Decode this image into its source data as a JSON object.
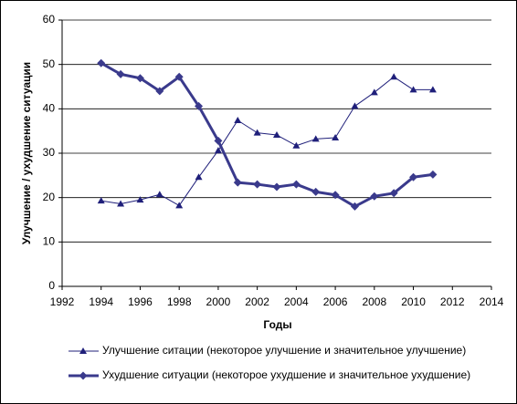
{
  "chart_data": {
    "type": "line",
    "x_label": "Годы",
    "y_label": "Улучшение / ухудшение ситуации",
    "x": [
      1994,
      1995,
      1996,
      1997,
      1998,
      1999,
      2000,
      2001,
      2002,
      2003,
      2004,
      2005,
      2006,
      2007,
      2008,
      2009,
      2010,
      2011
    ],
    "series": [
      {
        "name": "Улучшение ситации (некоторое улучшение и значительное улучшение)",
        "color": "#1f1f7a",
        "marker": "triangle",
        "line_width": 1,
        "values": [
          19.3,
          18.6,
          19.5,
          20.7,
          18.2,
          24.6,
          30.6,
          37.4,
          34.6,
          34.1,
          31.7,
          33.2,
          33.5,
          40.6,
          43.7,
          47.2,
          44.3,
          44.3
        ]
      },
      {
        "name": "Ухудшение ситуации (некоторое ухудшение и значительное ухудшение)",
        "color": "#3a3a8c",
        "marker": "diamond",
        "line_width": 3,
        "values": [
          50.3,
          47.8,
          46.9,
          44.0,
          47.2,
          40.6,
          32.8,
          23.4,
          23.0,
          22.4,
          23.0,
          21.3,
          20.6,
          18.0,
          20.3,
          21.0,
          24.6,
          25.2
        ]
      }
    ],
    "xlim": [
      1992,
      2014
    ],
    "xticks": [
      1992,
      1994,
      1996,
      1998,
      2000,
      2002,
      2004,
      2006,
      2008,
      2010,
      2012,
      2014
    ],
    "ylim": [
      0,
      60
    ],
    "yticks": [
      0,
      10,
      20,
      30,
      40,
      50,
      60
    ],
    "grid": true,
    "legend": "bottom"
  }
}
